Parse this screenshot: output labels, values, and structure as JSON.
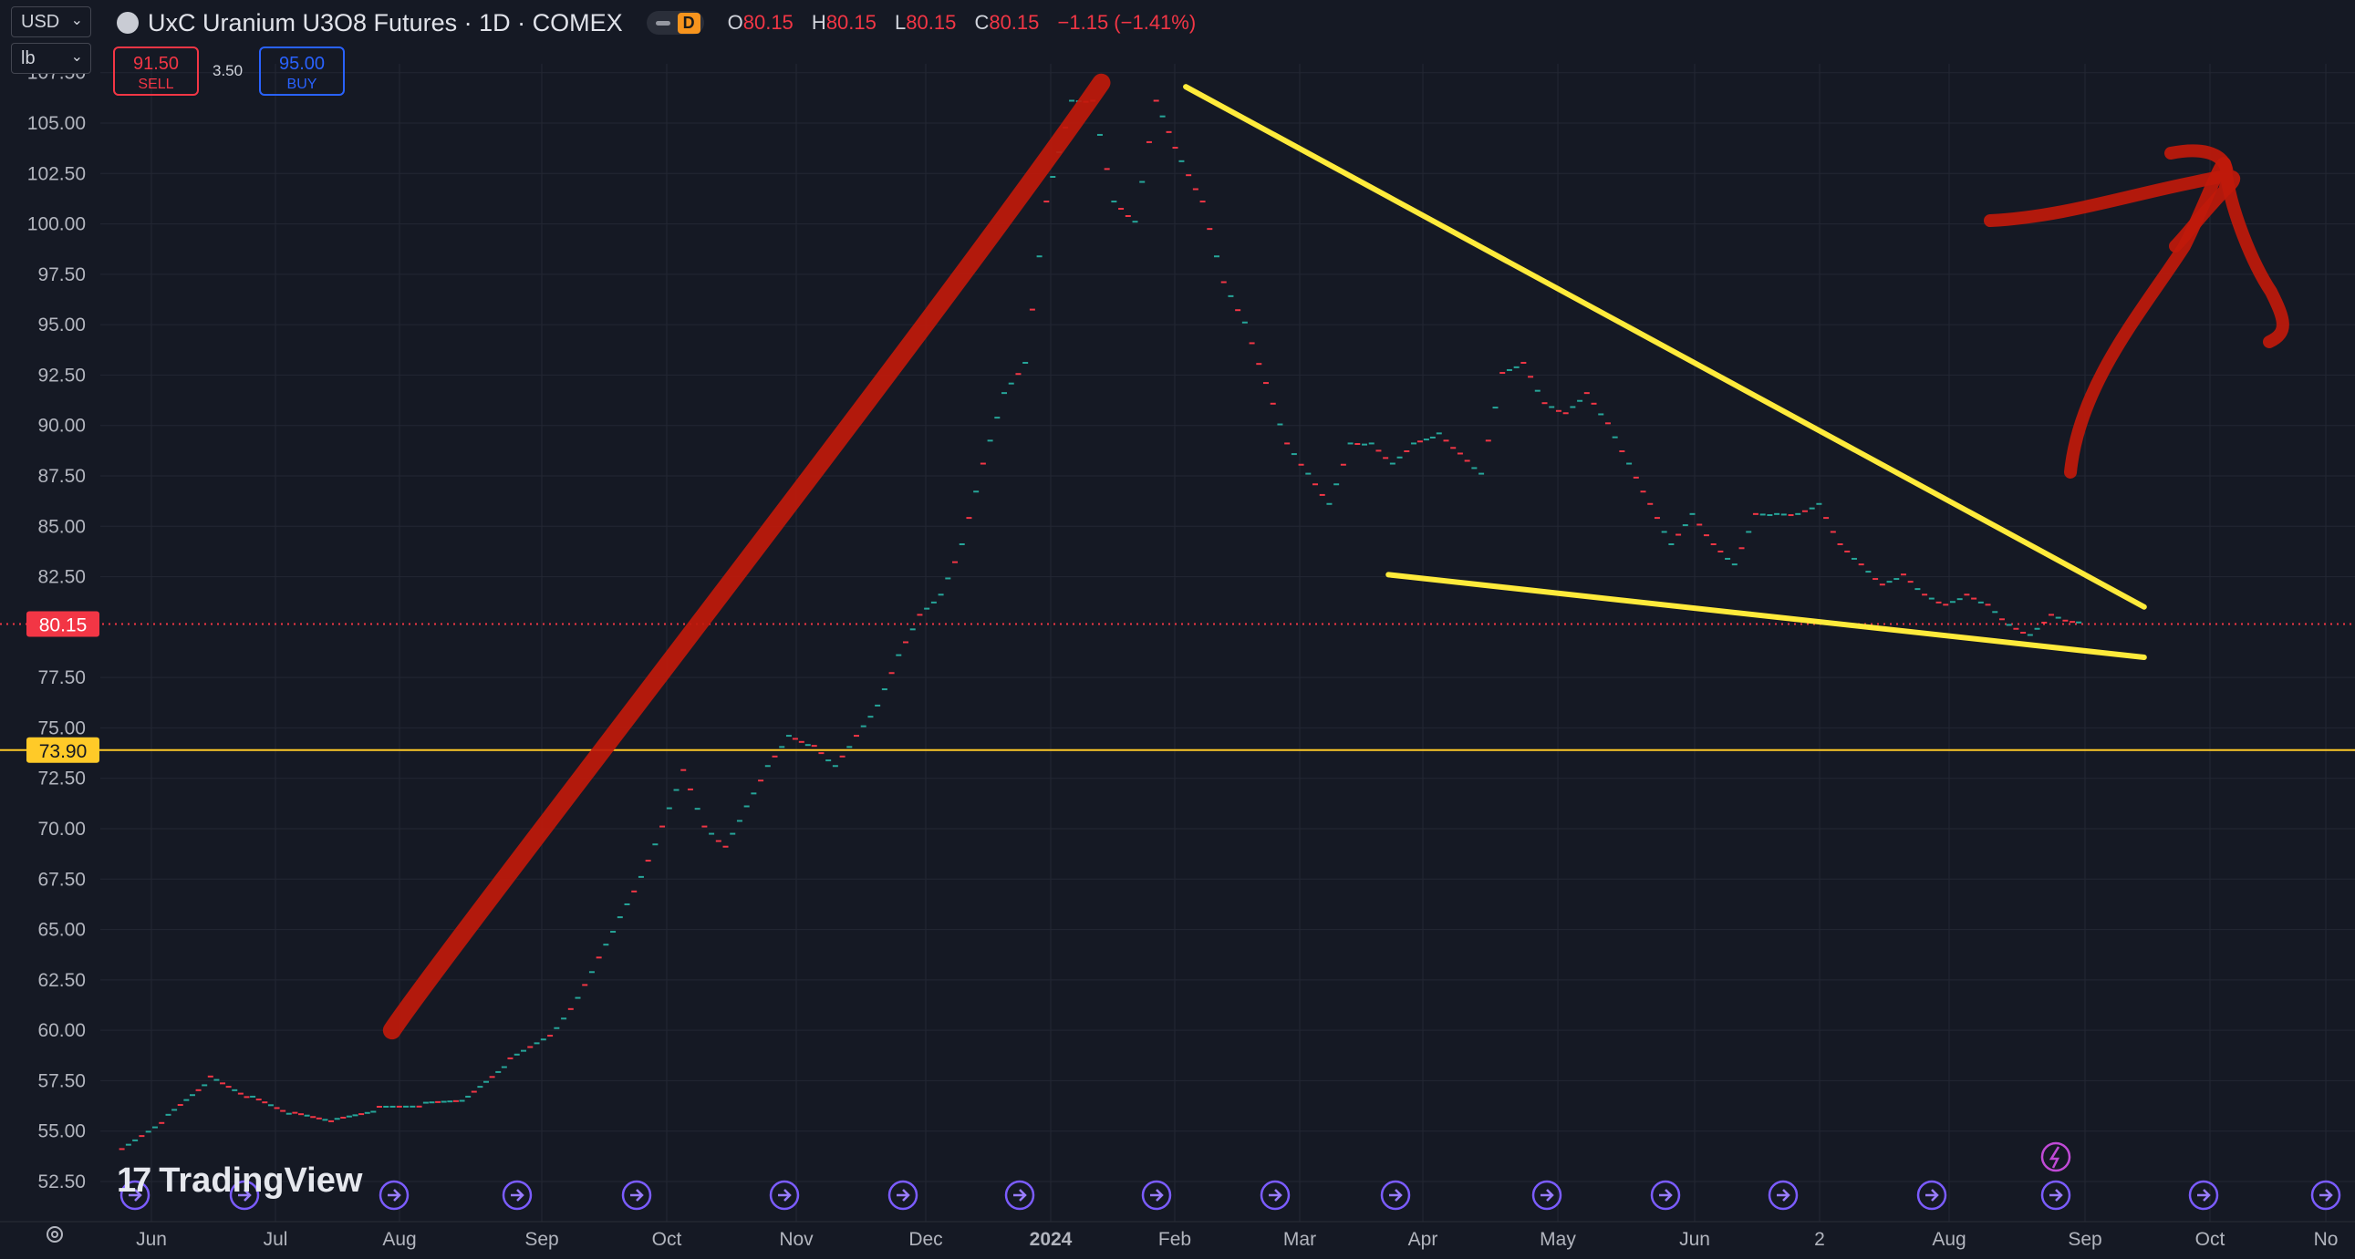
{
  "header": {
    "symbol_title": "UxC Uranium U3O8 Futures · 1D · COMEX",
    "pill_badge": "D",
    "ohlc": [
      {
        "k": "O",
        "v": "80.15"
      },
      {
        "k": "H",
        "v": "80.15"
      },
      {
        "k": "L",
        "v": "80.15"
      },
      {
        "k": "C",
        "v": "80.15"
      }
    ],
    "change": "−1.15 (−1.41%)"
  },
  "controls": {
    "currency": "USD",
    "unit": "lb",
    "sell_price": "91.50",
    "sell_label": "SELL",
    "spread": "3.50",
    "buy_price": "95.00",
    "buy_label": "BUY"
  },
  "watermark": "TradingView",
  "colors": {
    "background": "#151924",
    "up": "#26a69a",
    "down": "#f23645",
    "trendline": "#ffeb3b",
    "drawing": "#c0190b",
    "price_label": "#f23645",
    "hline_label": "#ffca28"
  },
  "chart_data": {
    "type": "line",
    "style": "daily candlesticks (dashes) with hand-drawn annotations",
    "price_axis": {
      "ticks": [
        "107.50",
        "105.00",
        "102.50",
        "100.00",
        "97.50",
        "95.00",
        "92.50",
        "90.00",
        "87.50",
        "85.00",
        "82.50",
        "80.15",
        "77.50",
        "75.00",
        "73.90",
        "72.50",
        "70.00",
        "67.50",
        "65.00",
        "62.50",
        "60.00",
        "57.50",
        "55.00",
        "52.50"
      ],
      "ylim": [
        52.0,
        108.5
      ]
    },
    "time_axis": {
      "labels": [
        "Jun",
        "Jul",
        "Aug",
        "Sep",
        "Oct",
        "Nov",
        "Dec",
        "2024",
        "Feb",
        "Mar",
        "Apr",
        "May",
        "Jun",
        "2",
        "Aug",
        "Sep",
        "Oct",
        "No"
      ]
    },
    "last_price": 80.15,
    "horizontal_line": 73.9,
    "series": [
      {
        "x": [
          "2023-05-25",
          "2023-06-05",
          "2023-06-15",
          "2023-06-25",
          "2023-07-05",
          "2023-07-15",
          "2023-07-25",
          "2023-08-05",
          "2023-08-15",
          "2023-08-25",
          "2023-09-05",
          "2023-09-10",
          "2023-09-15",
          "2023-09-20",
          "2023-09-25",
          "2023-09-30",
          "2023-10-05",
          "2023-10-10",
          "2023-10-15",
          "2023-10-20",
          "2023-10-25",
          "2023-10-30",
          "2023-11-05",
          "2023-11-10",
          "2023-11-15",
          "2023-11-20",
          "2023-11-25",
          "2023-11-30",
          "2023-12-05",
          "2023-12-10",
          "2023-12-15",
          "2023-12-20",
          "2023-12-25",
          "2023-12-30",
          "2024-01-05",
          "2024-01-10",
          "2024-01-15",
          "2024-01-20",
          "2024-01-25",
          "2024-01-31",
          "2024-02-05",
          "2024-02-10",
          "2024-02-15",
          "2024-02-20",
          "2024-02-25",
          "2024-03-01",
          "2024-03-06",
          "2024-03-11",
          "2024-03-16",
          "2024-03-21",
          "2024-03-26",
          "2024-04-01",
          "2024-04-06",
          "2024-04-11",
          "2024-04-16",
          "2024-04-21",
          "2024-04-26",
          "2024-05-01",
          "2024-05-06",
          "2024-05-11",
          "2024-05-16",
          "2024-05-21",
          "2024-05-26",
          "2024-05-31",
          "2024-06-05",
          "2024-06-10",
          "2024-06-15",
          "2024-06-20",
          "2024-06-25",
          "2024-06-30",
          "2024-07-05",
          "2024-07-10",
          "2024-07-15",
          "2024-07-20",
          "2024-07-25",
          "2024-07-30",
          "2024-08-04",
          "2024-08-09",
          "2024-08-14",
          "2024-08-19",
          "2024-08-24",
          "2024-08-29"
        ],
        "y": [
          54.0,
          55.7,
          57.6,
          56.6,
          55.8,
          55.5,
          56.1,
          56.3,
          56.6,
          58.5,
          60.0,
          61.5,
          63.5,
          65.5,
          67.5,
          70.0,
          72.8,
          70.0,
          69.0,
          71.0,
          73.0,
          74.5,
          74.0,
          73.0,
          74.5,
          76.0,
          78.5,
          80.5,
          81.5,
          84.0,
          88.0,
          91.5,
          93.0,
          101.0,
          106.0,
          106.0,
          101.0,
          100.0,
          106.0,
          103.0,
          101.0,
          97.0,
          95.0,
          92.0,
          89.0,
          87.5,
          86.0,
          89.0,
          89.0,
          88.0,
          89.0,
          89.5,
          88.5,
          87.5,
          92.5,
          93.0,
          91.0,
          90.5,
          91.5,
          90.0,
          88.0,
          86.0,
          84.0,
          85.5,
          84.0,
          83.0,
          85.5,
          85.5,
          85.5,
          86.0,
          84.0,
          83.0,
          82.0,
          82.5,
          81.5,
          81.0,
          81.5,
          81.0,
          80.0,
          79.5,
          80.5,
          80.15
        ]
      }
    ],
    "annotations": [
      {
        "kind": "yellow trend line (upper)",
        "from": {
          "x": "2024-02-01",
          "y": 106.8
        },
        "to": {
          "x": "2024-09-15",
          "y": 81.0
        }
      },
      {
        "kind": "yellow trend line (lower)",
        "from": {
          "x": "2024-03-20",
          "y": 82.6
        },
        "to": {
          "x": "2024-09-15",
          "y": 78.5
        }
      },
      {
        "kind": "red hand-drawn up stroke",
        "from": {
          "x": "2023-07-28",
          "y": 60.0
        },
        "to": {
          "x": "2024-01-12",
          "y": 107.0
        }
      },
      {
        "kind": "red hand-drawn arrow",
        "direction": "up"
      }
    ]
  }
}
